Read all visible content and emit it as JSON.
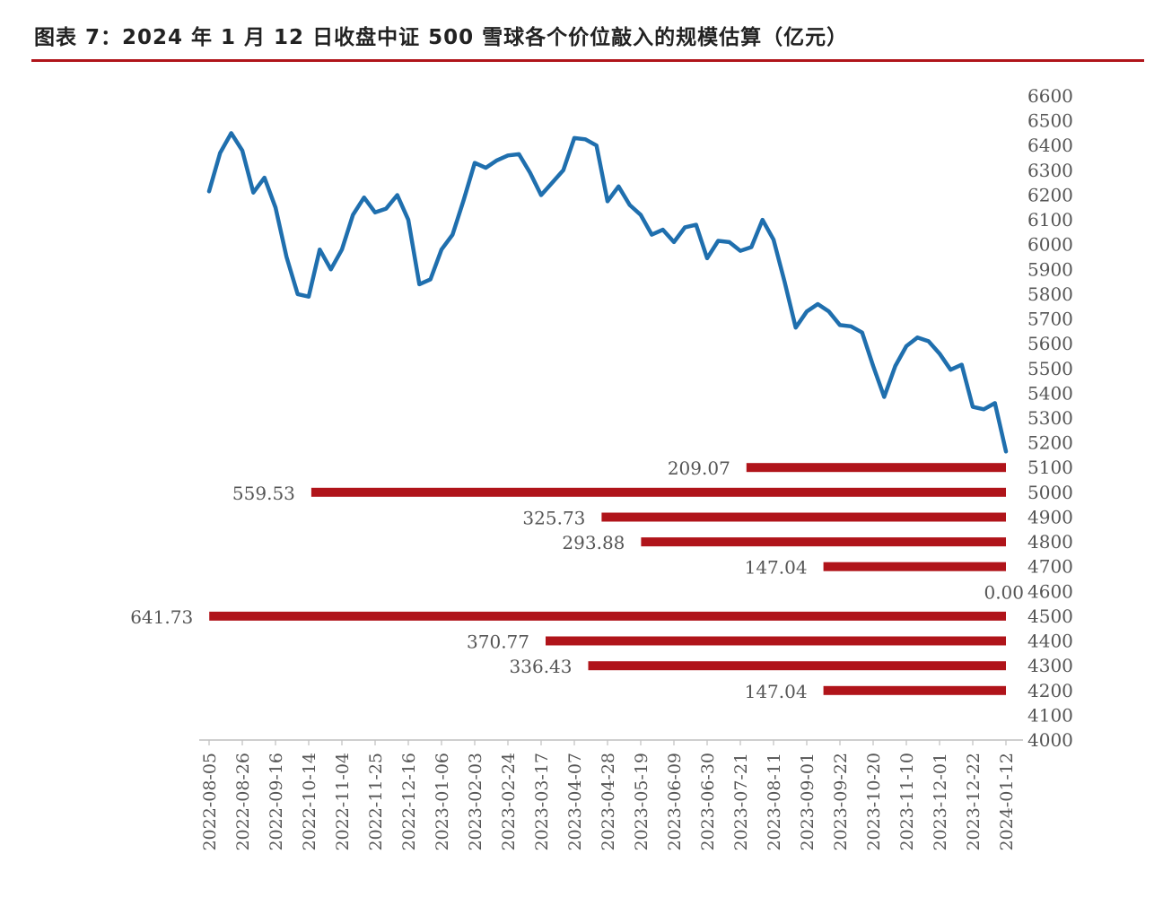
{
  "title": "图表 7：2024 年 1 月 12 日收盘中证 500 雪球各个价位敲入的规模估算（亿元）",
  "colors": {
    "line": "#1f6fae",
    "bar": "#b0141a",
    "rule": "#b0141a",
    "text": "#555555"
  },
  "chart_data": {
    "type": "line",
    "title": "图表 7：2024 年 1 月 12 日收盘中证 500 雪球各个价位敲入的规模估算（亿元）",
    "ylim": [
      4000,
      6600
    ],
    "y_ticks": [
      6600,
      6500,
      6400,
      6300,
      6200,
      6100,
      6000,
      5900,
      5800,
      5700,
      5600,
      5500,
      5400,
      5300,
      5200,
      5100,
      5000,
      4900,
      4800,
      4700,
      4600,
      4500,
      4400,
      4300,
      4200,
      4100,
      4000
    ],
    "x_ticks": [
      "2022-08-05",
      "2022-08-26",
      "2022-09-16",
      "2022-10-14",
      "2022-11-04",
      "2022-11-25",
      "2022-12-16",
      "2023-01-06",
      "2023-02-03",
      "2023-02-24",
      "2023-03-17",
      "2023-04-07",
      "2023-04-28",
      "2023-05-19",
      "2023-06-09",
      "2023-06-30",
      "2023-07-21",
      "2023-08-11",
      "2023-09-01",
      "2023-09-22",
      "2023-10-20",
      "2023-11-10",
      "2023-12-01",
      "2023-12-22",
      "2024-01-12"
    ],
    "legend": "none",
    "grid": false,
    "series": [
      {
        "values": [
          6215,
          6370,
          6450,
          6380,
          6210,
          6270,
          6150,
          5950,
          5800,
          5790,
          5980,
          5900,
          5980,
          6120,
          6190,
          6130,
          6145,
          6200,
          6100,
          5840,
          5860,
          5980,
          6040,
          6180,
          6330,
          6310,
          6340,
          6360,
          6365,
          6290,
          6200,
          6250,
          6300,
          6430,
          6425,
          6400,
          6175,
          6235,
          6160,
          6120,
          6040,
          6060,
          6010,
          6070,
          6080,
          5945,
          6015,
          6010,
          5975,
          5990,
          6100,
          6020,
          5850,
          5665,
          5730,
          5760,
          5730,
          5675,
          5670,
          5645,
          5510,
          5385,
          5510,
          5590,
          5625,
          5610,
          5560,
          5495,
          5515,
          5345,
          5335,
          5360,
          5165
        ]
      },
      {
        "type": "bar",
        "orientation": "horizontal",
        "levels": [
          5100,
          5000,
          4900,
          4800,
          4700,
          4600,
          4500,
          4400,
          4300,
          4200
        ],
        "values": [
          209.07,
          559.53,
          325.73,
          293.88,
          147.04,
          0.0,
          641.73,
          370.77,
          336.43,
          147.04
        ],
        "labels": [
          "209.07",
          "559.53",
          "325.73",
          "293.88",
          "147.04",
          "0.00",
          "641.73",
          "370.77",
          "336.43",
          "147.04"
        ]
      }
    ]
  }
}
